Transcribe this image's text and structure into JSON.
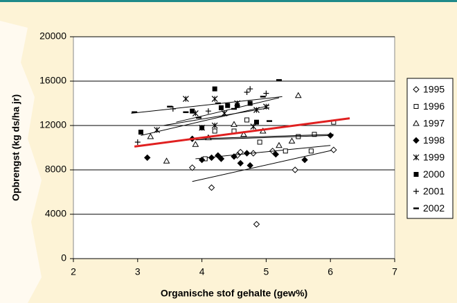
{
  "chart_data": {
    "type": "scatter",
    "x_label": "Organische stof gehalte (gew%)",
    "y_label": "Opbrengst (kg ds/ha jr)",
    "xlim": [
      2,
      7
    ],
    "xticks": [
      2,
      3,
      4,
      5,
      6,
      7
    ],
    "ylim": [
      0,
      20000
    ],
    "yticks": [
      0,
      4000,
      8000,
      12000,
      16000,
      20000
    ],
    "grid": true,
    "legend": "right",
    "overall_trend": {
      "color": "#e02020",
      "x": [
        2.95,
        6.3
      ],
      "y": [
        10100,
        12650
      ]
    },
    "series": [
      {
        "name": "1995",
        "marker": "diamond-open",
        "color": "#000000",
        "x": [
          3.85,
          4.15,
          4.55,
          4.6,
          4.8,
          5.1,
          5.45,
          6.05,
          4.85
        ],
        "values": [
          8200,
          6400,
          9300,
          9600,
          9500,
          9700,
          8000,
          9800,
          3100
        ],
        "trend": {
          "x": [
            3.85,
            6.05
          ],
          "y": [
            6950,
            9800
          ]
        }
      },
      {
        "name": "1996",
        "marker": "square-open",
        "color": "#000000",
        "x": [
          4.05,
          4.2,
          4.5,
          4.7,
          4.9,
          5.3,
          5.5,
          5.7,
          5.75,
          6.05
        ],
        "values": [
          9000,
          11500,
          11500,
          12500,
          10500,
          9700,
          11000,
          9700,
          11200,
          12300
        ],
        "trend": {
          "x": [
            3.9,
            6.0
          ],
          "y": [
            9000,
            10200
          ]
        }
      },
      {
        "name": "1997",
        "marker": "triangle-open",
        "color": "#000000",
        "x": [
          3.2,
          3.45,
          3.9,
          4.1,
          4.5,
          4.65,
          4.95,
          5.2,
          5.4,
          5.5
        ],
        "values": [
          11000,
          8800,
          10300,
          10900,
          12100,
          11200,
          11500,
          10200,
          10600,
          14700
        ],
        "trend": {
          "x": [
            3.9,
            6.0
          ],
          "y": [
            10700,
            11100
          ]
        }
      },
      {
        "name": "1998",
        "marker": "diamond",
        "color": "#000000",
        "x": [
          3.15,
          3.85,
          4.0,
          4.15,
          4.25,
          4.3,
          4.5,
          4.6,
          4.7,
          4.75,
          5.15,
          5.6,
          6.0
        ],
        "values": [
          9100,
          10800,
          8900,
          9100,
          9300,
          9000,
          9200,
          8600,
          9500,
          8400,
          9400,
          8900,
          11100
        ],
        "trend": {
          "x": [
            3.9,
            6.05
          ],
          "y": [
            10800,
            11200
          ]
        }
      },
      {
        "name": "1999",
        "marker": "star",
        "color": "#000000",
        "x": [
          3.3,
          3.75,
          3.9,
          4.0,
          4.2,
          4.2,
          4.35,
          4.55,
          4.8,
          4.85,
          5.0
        ],
        "values": [
          11600,
          14400,
          13100,
          11800,
          14400,
          12000,
          13100,
          14000,
          11900,
          13400,
          13700
        ],
        "trend": {
          "x": [
            3.05,
            5.05
          ],
          "y": [
            11100,
            13800
          ]
        }
      },
      {
        "name": "2000",
        "marker": "square",
        "color": "#000000",
        "x": [
          3.05,
          3.85,
          4.0,
          4.2,
          4.3,
          4.4,
          4.55,
          4.75,
          4.85
        ],
        "values": [
          11400,
          13300,
          11800,
          15300,
          13600,
          13800,
          13800,
          14000,
          12300
        ],
        "trend": {
          "x": [
            3.4,
            5.05
          ],
          "y": [
            12000,
            13600
          ]
        }
      },
      {
        "name": "2001",
        "marker": "plus",
        "color": "#000000",
        "x": [
          3.0,
          3.55,
          4.1,
          4.7,
          4.75,
          5.0
        ],
        "values": [
          10500,
          13500,
          13300,
          15000,
          15300,
          14900
        ],
        "trend": {
          "x": [
            3.6,
            5.2
          ],
          "y": [
            12300,
            14500
          ]
        }
      },
      {
        "name": "2002",
        "marker": "dash",
        "color": "#000000",
        "x": [
          2.95,
          3.5,
          3.75,
          3.95,
          4.25,
          4.5,
          4.95,
          5.05,
          5.2
        ],
        "values": [
          13200,
          13700,
          13200,
          12700,
          14000,
          13500,
          14600,
          12400,
          16100
        ],
        "trend": {
          "x": [
            2.9,
            5.25
          ],
          "y": [
            13100,
            14600
          ]
        }
      }
    ]
  }
}
